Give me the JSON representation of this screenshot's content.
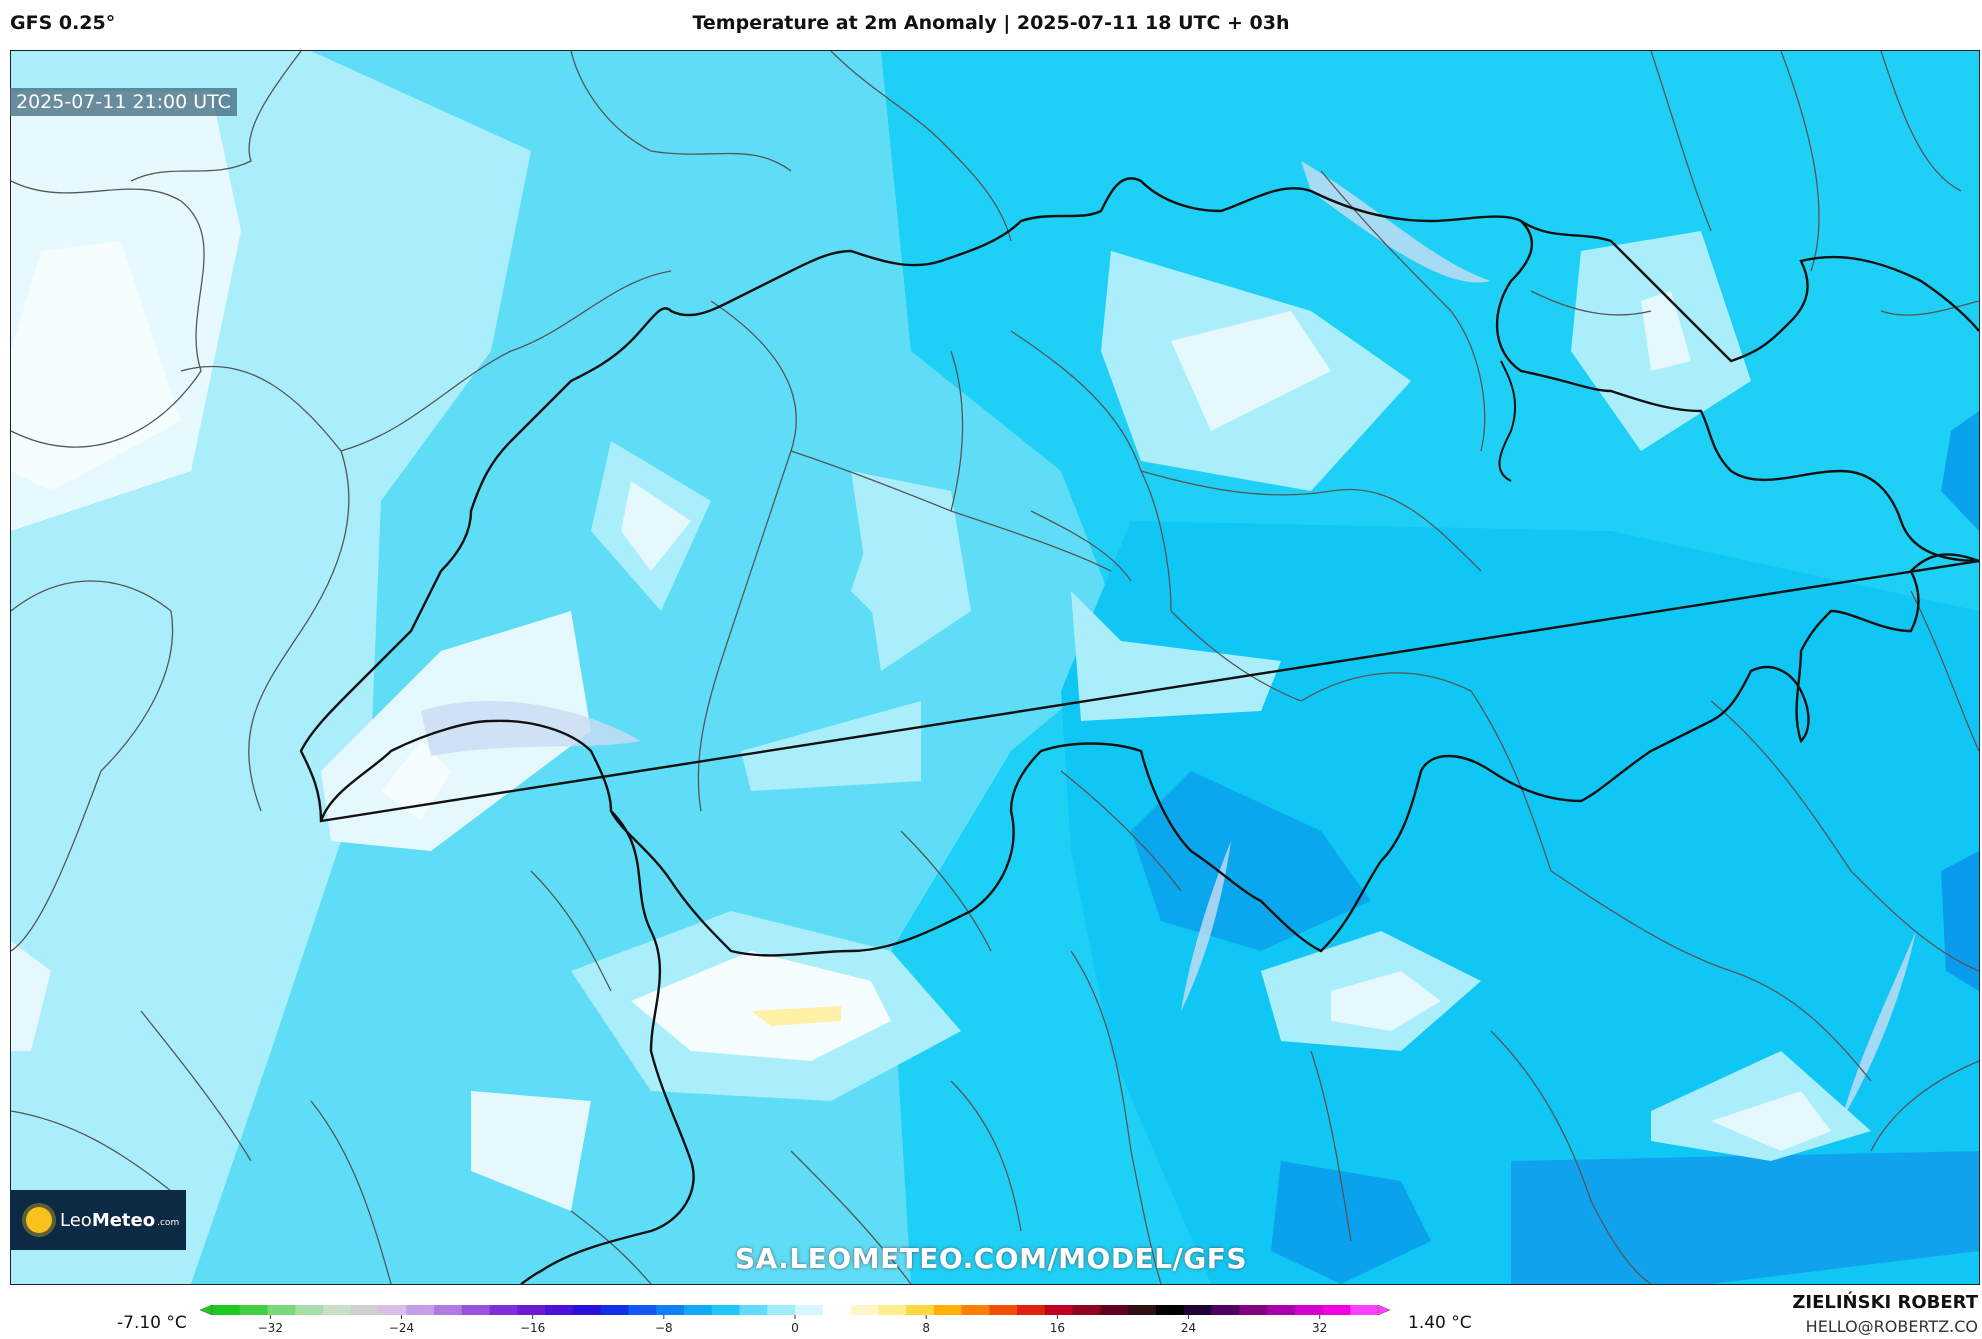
{
  "header": {
    "model_label": "GFS 0.25°",
    "title": "Temperature at 2m Anomaly | 2025-07-11 18 UTC + 03h"
  },
  "map": {
    "valid_time": "2025-07-11 21:00 UTC",
    "region": "Switzerland and surrounding Alps",
    "field": "2 m temperature anomaly",
    "min_value": "-7.10 °C",
    "max_value": "1.40 °C"
  },
  "logo": {
    "text_light": "Leo",
    "text_bold": "Meteo",
    "domain": ".com"
  },
  "watermark": "SA.LEOMETEO.COM/MODEL/GFS",
  "colorbar": {
    "min_label": "-7.10 °C",
    "max_label": "1.40 °C",
    "ticks": [
      "−32",
      "−24",
      "−16",
      "−8",
      "0",
      "8",
      "16",
      "24",
      "32"
    ],
    "colors": [
      "#1ec81e",
      "#40d040",
      "#7ad77a",
      "#a8dfa8",
      "#c8e0c8",
      "#cfcfcf",
      "#d8c0e8",
      "#c79ee6",
      "#b07be0",
      "#9855dc",
      "#7f2ed8",
      "#6a1cd0",
      "#4a12d6",
      "#2a10dc",
      "#1030e6",
      "#1058f0",
      "#1080f6",
      "#10a8fa",
      "#20c8fc",
      "#60dcfc",
      "#a0ecfc",
      "#d6f6fd",
      "#ffffff",
      "#fff7c8",
      "#ffec90",
      "#ffd740",
      "#ffb000",
      "#ff8000",
      "#f05000",
      "#e02010",
      "#c00020",
      "#900020",
      "#600020",
      "#301010",
      "#000000",
      "#200030",
      "#500060",
      "#800080",
      "#a800a8",
      "#d000d0",
      "#f000e0",
      "#ff40ff"
    ]
  },
  "author": {
    "name": "ZIELIŃSKI ROBERT",
    "email": "HELLO@ROBERTZ.CO"
  }
}
